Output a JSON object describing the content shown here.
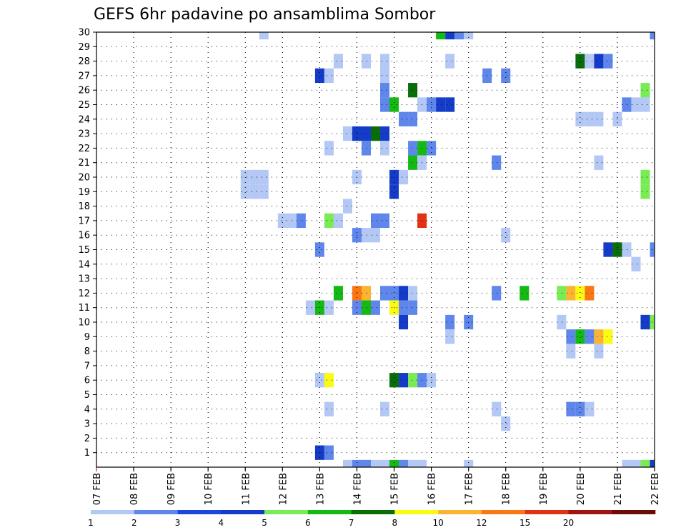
{
  "chart_data": {
    "type": "heatmap",
    "title": "GEFS 6hr padavine po ansamblima Sombor",
    "xlabel": "",
    "ylabel": "",
    "x_ticks": [
      "07 FEB",
      "08 FEB",
      "09 FEB",
      "10 FEB",
      "11 FEB",
      "12 FEB",
      "13 FEB",
      "14 FEB",
      "15 FEB",
      "16 FEB",
      "17 FEB",
      "18 FEB",
      "19 FEB",
      "20 FEB",
      "21 FEB",
      "22 FEB"
    ],
    "x_range_days": [
      7,
      22
    ],
    "y_ticks": [
      "1",
      "2",
      "3",
      "4",
      "5",
      "6",
      "7",
      "8",
      "9",
      "10",
      "11",
      "12",
      "13",
      "14",
      "15",
      "16",
      "17",
      "18",
      "19",
      "20",
      "21",
      "22",
      "23",
      "24",
      "25",
      "26",
      "27",
      "28",
      "29",
      "30"
    ],
    "y_range": [
      0,
      30
    ],
    "grid": "dotted",
    "colorbar": {
      "levels": [
        "1",
        "2",
        "3",
        "4",
        "5",
        "6",
        "7",
        "8",
        "10",
        "12",
        "15",
        "20",
        ""
      ],
      "colors": [
        "#b4c8f5",
        "#5f87eb",
        "#1e46dc",
        "#143cc8",
        "#78eb55",
        "#14b914",
        "#096e09",
        "#fafa14",
        "#fab432",
        "#fa7814",
        "#e13214",
        "#a01414",
        "#6e0a0a"
      ]
    },
    "cells": [
      {
        "member": 30,
        "day": 11.5,
        "level": 1
      },
      {
        "member": 30,
        "day": 16.25,
        "level": 6
      },
      {
        "member": 30,
        "day": 16.5,
        "level": 4
      },
      {
        "member": 30,
        "day": 16.75,
        "level": 2
      },
      {
        "member": 30,
        "day": 17.0,
        "level": 1
      },
      {
        "member": 30,
        "day": 22.0,
        "level": 2
      },
      {
        "member": 28,
        "day": 13.5,
        "level": 1
      },
      {
        "member": 28,
        "day": 14.25,
        "level": 1
      },
      {
        "member": 28,
        "day": 14.75,
        "level": 1
      },
      {
        "member": 28,
        "day": 16.5,
        "level": 1
      },
      {
        "member": 28,
        "day": 20.0,
        "level": 7
      },
      {
        "member": 28,
        "day": 20.25,
        "level": 1
      },
      {
        "member": 28,
        "day": 20.5,
        "level": 4
      },
      {
        "member": 28,
        "day": 20.75,
        "level": 2
      },
      {
        "member": 27,
        "day": 13.0,
        "level": 4
      },
      {
        "member": 27,
        "day": 13.25,
        "level": 1
      },
      {
        "member": 27,
        "day": 14.75,
        "level": 1
      },
      {
        "member": 27,
        "day": 17.5,
        "level": 2
      },
      {
        "member": 27,
        "day": 18.0,
        "level": 2
      },
      {
        "member": 26,
        "day": 14.75,
        "level": 2
      },
      {
        "member": 26,
        "day": 15.5,
        "level": 7
      },
      {
        "member": 26,
        "day": 21.75,
        "level": 5
      },
      {
        "member": 25,
        "day": 14.75,
        "level": 2
      },
      {
        "member": 25,
        "day": 15.0,
        "level": 6
      },
      {
        "member": 25,
        "day": 15.75,
        "level": 1
      },
      {
        "member": 25,
        "day": 16.0,
        "level": 2
      },
      {
        "member": 25,
        "day": 16.25,
        "level": 4
      },
      {
        "member": 25,
        "day": 16.5,
        "level": 4
      },
      {
        "member": 25,
        "day": 21.25,
        "level": 2
      },
      {
        "member": 25,
        "day": 21.5,
        "level": 1
      },
      {
        "member": 25,
        "day": 21.75,
        "level": 1
      },
      {
        "member": 24,
        "day": 15.25,
        "level": 2
      },
      {
        "member": 24,
        "day": 15.5,
        "level": 2
      },
      {
        "member": 24,
        "day": 20.0,
        "level": 1
      },
      {
        "member": 24,
        "day": 20.25,
        "level": 1
      },
      {
        "member": 24,
        "day": 20.5,
        "level": 1
      },
      {
        "member": 24,
        "day": 21.0,
        "level": 1
      },
      {
        "member": 23,
        "day": 13.75,
        "level": 1
      },
      {
        "member": 23,
        "day": 14.0,
        "level": 4
      },
      {
        "member": 23,
        "day": 14.25,
        "level": 4
      },
      {
        "member": 23,
        "day": 14.5,
        "level": 7
      },
      {
        "member": 23,
        "day": 14.75,
        "level": 4
      },
      {
        "member": 22,
        "day": 13.25,
        "level": 1
      },
      {
        "member": 22,
        "day": 14.25,
        "level": 2
      },
      {
        "member": 22,
        "day": 14.75,
        "level": 1
      },
      {
        "member": 22,
        "day": 15.5,
        "level": 2
      },
      {
        "member": 22,
        "day": 15.75,
        "level": 6
      },
      {
        "member": 22,
        "day": 16.0,
        "level": 2
      },
      {
        "member": 21,
        "day": 15.5,
        "level": 6
      },
      {
        "member": 21,
        "day": 15.75,
        "level": 1
      },
      {
        "member": 21,
        "day": 17.75,
        "level": 2
      },
      {
        "member": 21,
        "day": 20.5,
        "level": 1
      },
      {
        "member": 20,
        "day": 11.0,
        "level": 1
      },
      {
        "member": 20,
        "day": 11.25,
        "level": 1
      },
      {
        "member": 20,
        "day": 11.5,
        "level": 1
      },
      {
        "member": 20,
        "day": 14.0,
        "level": 1
      },
      {
        "member": 20,
        "day": 15.0,
        "level": 4
      },
      {
        "member": 20,
        "day": 15.25,
        "level": 1
      },
      {
        "member": 20,
        "day": 21.75,
        "level": 5
      },
      {
        "member": 19,
        "day": 11.0,
        "level": 1
      },
      {
        "member": 19,
        "day": 11.25,
        "level": 1
      },
      {
        "member": 19,
        "day": 11.5,
        "level": 1
      },
      {
        "member": 19,
        "day": 15.0,
        "level": 4
      },
      {
        "member": 19,
        "day": 21.75,
        "level": 5
      },
      {
        "member": 18,
        "day": 13.75,
        "level": 1
      },
      {
        "member": 17,
        "day": 12.0,
        "level": 1
      },
      {
        "member": 17,
        "day": 12.25,
        "level": 1
      },
      {
        "member": 17,
        "day": 12.5,
        "level": 2
      },
      {
        "member": 17,
        "day": 13.25,
        "level": 5
      },
      {
        "member": 17,
        "day": 13.5,
        "level": 1
      },
      {
        "member": 17,
        "day": 14.5,
        "level": 2
      },
      {
        "member": 17,
        "day": 14.75,
        "level": 2
      },
      {
        "member": 17,
        "day": 15.75,
        "level": 11
      },
      {
        "member": 16,
        "day": 14.0,
        "level": 2
      },
      {
        "member": 16,
        "day": 14.25,
        "level": 1
      },
      {
        "member": 16,
        "day": 14.5,
        "level": 1
      },
      {
        "member": 16,
        "day": 18.0,
        "level": 1
      },
      {
        "member": 15,
        "day": 13.0,
        "level": 2
      },
      {
        "member": 15,
        "day": 20.75,
        "level": 4
      },
      {
        "member": 15,
        "day": 21.0,
        "level": 7
      },
      {
        "member": 15,
        "day": 21.25,
        "level": 1
      },
      {
        "member": 15,
        "day": 22.0,
        "level": 2
      },
      {
        "member": 14,
        "day": 21.5,
        "level": 1
      },
      {
        "member": 12,
        "day": 13.5,
        "level": 6
      },
      {
        "member": 12,
        "day": 14.0,
        "level": 10
      },
      {
        "member": 12,
        "day": 14.25,
        "level": 9
      },
      {
        "member": 12,
        "day": 14.75,
        "level": 2
      },
      {
        "member": 12,
        "day": 15.0,
        "level": 2
      },
      {
        "member": 12,
        "day": 15.25,
        "level": 4
      },
      {
        "member": 12,
        "day": 15.5,
        "level": 1
      },
      {
        "member": 12,
        "day": 17.75,
        "level": 2
      },
      {
        "member": 12,
        "day": 18.5,
        "level": 6
      },
      {
        "member": 12,
        "day": 19.5,
        "level": 5
      },
      {
        "member": 12,
        "day": 19.75,
        "level": 9
      },
      {
        "member": 12,
        "day": 20.0,
        "level": 8
      },
      {
        "member": 12,
        "day": 20.25,
        "level": 10
      },
      {
        "member": 11,
        "day": 12.75,
        "level": 1
      },
      {
        "member": 11,
        "day": 13.0,
        "level": 6
      },
      {
        "member": 11,
        "day": 13.25,
        "level": 1
      },
      {
        "member": 11,
        "day": 14.0,
        "level": 2
      },
      {
        "member": 11,
        "day": 14.25,
        "level": 6
      },
      {
        "member": 11,
        "day": 14.5,
        "level": 2
      },
      {
        "member": 11,
        "day": 15.0,
        "level": 8
      },
      {
        "member": 11,
        "day": 15.25,
        "level": 2
      },
      {
        "member": 11,
        "day": 15.5,
        "level": 2
      },
      {
        "member": 10,
        "day": 15.25,
        "level": 4
      },
      {
        "member": 10,
        "day": 16.5,
        "level": 2
      },
      {
        "member": 10,
        "day": 17.0,
        "level": 2
      },
      {
        "member": 10,
        "day": 19.5,
        "level": 1
      },
      {
        "member": 10,
        "day": 21.75,
        "level": 4
      },
      {
        "member": 10,
        "day": 22.0,
        "level": 5
      },
      {
        "member": 9,
        "day": 16.5,
        "level": 1
      },
      {
        "member": 9,
        "day": 19.75,
        "level": 2
      },
      {
        "member": 9,
        "day": 20.0,
        "level": 6
      },
      {
        "member": 9,
        "day": 20.25,
        "level": 2
      },
      {
        "member": 9,
        "day": 20.5,
        "level": 9
      },
      {
        "member": 9,
        "day": 20.75,
        "level": 8
      },
      {
        "member": 8,
        "day": 19.75,
        "level": 1
      },
      {
        "member": 8,
        "day": 20.5,
        "level": 1
      },
      {
        "member": 6,
        "day": 13.0,
        "level": 1
      },
      {
        "member": 6,
        "day": 13.25,
        "level": 8
      },
      {
        "member": 6,
        "day": 15.0,
        "level": 7
      },
      {
        "member": 6,
        "day": 15.25,
        "level": 4
      },
      {
        "member": 6,
        "day": 15.5,
        "level": 5
      },
      {
        "member": 6,
        "day": 15.75,
        "level": 2
      },
      {
        "member": 6,
        "day": 16.0,
        "level": 1
      },
      {
        "member": 4,
        "day": 13.25,
        "level": 1
      },
      {
        "member": 4,
        "day": 14.75,
        "level": 1
      },
      {
        "member": 4,
        "day": 17.75,
        "level": 1
      },
      {
        "member": 4,
        "day": 19.75,
        "level": 2
      },
      {
        "member": 4,
        "day": 20.0,
        "level": 2
      },
      {
        "member": 4,
        "day": 20.25,
        "level": 1
      },
      {
        "member": 3,
        "day": 18.0,
        "level": 1
      },
      {
        "member": 1,
        "day": 13.0,
        "level": 4
      },
      {
        "member": 1,
        "day": 13.25,
        "level": 2
      },
      {
        "member": 0,
        "day": 13.75,
        "level": 1
      },
      {
        "member": 0,
        "day": 14.0,
        "level": 2
      },
      {
        "member": 0,
        "day": 14.25,
        "level": 2
      },
      {
        "member": 0,
        "day": 14.5,
        "level": 1
      },
      {
        "member": 0,
        "day": 14.75,
        "level": 1
      },
      {
        "member": 0,
        "day": 15.0,
        "level": 6
      },
      {
        "member": 0,
        "day": 15.25,
        "level": 2
      },
      {
        "member": 0,
        "day": 15.5,
        "level": 1
      },
      {
        "member": 0,
        "day": 15.75,
        "level": 1
      },
      {
        "member": 0,
        "day": 17.0,
        "level": 1
      },
      {
        "member": 0,
        "day": 21.25,
        "level": 1
      },
      {
        "member": 0,
        "day": 21.5,
        "level": 1
      },
      {
        "member": 0,
        "day": 21.75,
        "level": 5
      },
      {
        "member": 0,
        "day": 22.0,
        "level": 4
      }
    ]
  }
}
